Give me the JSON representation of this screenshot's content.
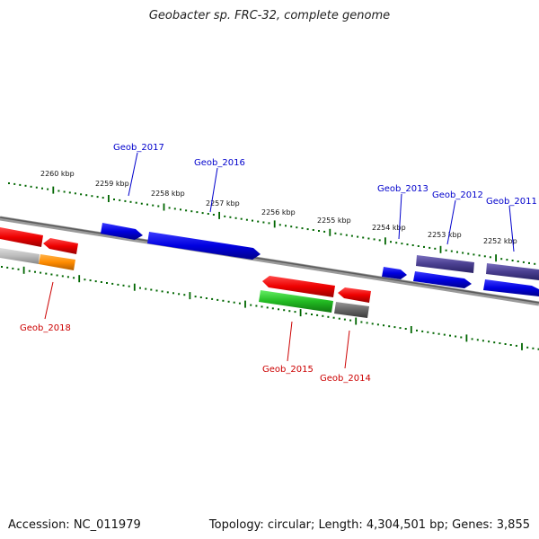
{
  "title": "Geobacter sp. FRC-32, complete genome",
  "footer": {
    "accession": "Accession: NC_011979",
    "summary": "Topology: circular; Length: 4,304,501 bp; Genes: 3,855"
  },
  "scale": {
    "ticks": [
      "2260 kbp",
      "2259 kbp",
      "2258 kbp",
      "2257 kbp",
      "2256 kbp",
      "2255 kbp",
      "2254 kbp",
      "2253 kbp",
      "2252 kbp"
    ]
  },
  "genes": [
    {
      "label": "Geob_2017",
      "strand": "forward",
      "color": "#0000cc"
    },
    {
      "label": "Geob_2016",
      "strand": "forward",
      "color": "#0000cc"
    },
    {
      "label": "Geob_2013",
      "strand": "forward",
      "color": "#0000cc"
    },
    {
      "label": "Geob_2012",
      "strand": "forward",
      "color": "#0000cc"
    },
    {
      "label": "Geob_2011",
      "strand": "forward",
      "color": "#0000cc"
    },
    {
      "label": "Geob_2018",
      "strand": "reverse",
      "color": "#cc0000"
    },
    {
      "label": "Geob_2015",
      "strand": "reverse",
      "color": "#cc0000"
    },
    {
      "label": "Geob_2014",
      "strand": "reverse",
      "color": "#cc0000"
    }
  ],
  "colors": {
    "forward_label": "#0000cc",
    "reverse_label": "#cc0000",
    "tick": "#006600",
    "backbone": "#777777"
  }
}
